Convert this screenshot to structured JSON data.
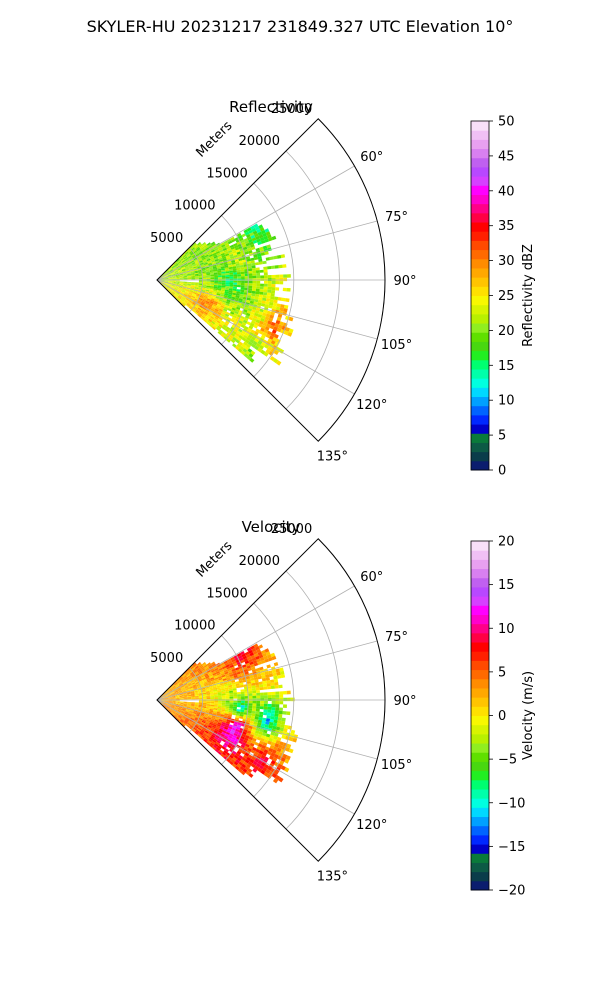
{
  "figure": {
    "title": "SKYLER-HU  20231217  231849.327 UTC Elevation 10°"
  },
  "chart_data": [
    {
      "type": "heatmap",
      "projection": "polar-sector",
      "title": "Reflectivity",
      "radial_label": "Meters",
      "radial_ticks": [
        5000,
        10000,
        15000,
        20000,
        25000
      ],
      "radial_tick_labels": [
        "5000",
        "10000",
        "15000",
        "20000",
        "25000"
      ],
      "r_max": 25000,
      "azimuth_range_deg": [
        45,
        135
      ],
      "azimuth_ticks": [
        60,
        75,
        90,
        105,
        120,
        135
      ],
      "azimuth_tick_labels": [
        "60°",
        "75°",
        "90°",
        "105°",
        "120°",
        "135°"
      ],
      "grid": true,
      "colorbar": {
        "label": "Reflectivity dBZ",
        "range": [
          0,
          50
        ],
        "ticks": [
          0,
          5,
          10,
          15,
          20,
          25,
          30,
          35,
          40,
          45,
          50
        ],
        "tick_labels": [
          "0",
          "5",
          "10",
          "15",
          "20",
          "25",
          "30",
          "35",
          "40",
          "45",
          "50"
        ],
        "colors": [
          "#0b1d6e",
          "#0a3c4a",
          "#0d5a45",
          "#0a7a3a",
          "#0000c8",
          "#0028ff",
          "#0064ff",
          "#00a0ff",
          "#00d8ff",
          "#00ffe0",
          "#00ffaa",
          "#00ff70",
          "#22ee22",
          "#48d810",
          "#60e000",
          "#90ee20",
          "#b8f000",
          "#d8f400",
          "#f8f800",
          "#ffe000",
          "#ffc400",
          "#ffa800",
          "#ff8c00",
          "#ff6a00",
          "#ff4a00",
          "#ff2000",
          "#ff0000",
          "#ff0044",
          "#ff0088",
          "#ff00cc",
          "#ff00ff",
          "#d640ff",
          "#b848ff",
          "#c060f0",
          "#d880f0",
          "#e8a0f0",
          "#f0c0f4",
          "#f8e0f8"
        ]
      },
      "field_samples": [
        {
          "az": 62,
          "range": 12000,
          "value": 16
        },
        {
          "az": 75,
          "range": 9000,
          "value": 22
        },
        {
          "az": 90,
          "range": 8000,
          "value": 15
        },
        {
          "az": 98,
          "range": 9000,
          "value": 18
        },
        {
          "az": 105,
          "range": 12000,
          "value": 23
        },
        {
          "az": 112,
          "range": 13500,
          "value": 33
        },
        {
          "az": 115,
          "range": 6000,
          "value": 30
        },
        {
          "az": 125,
          "range": 13000,
          "value": 20
        }
      ]
    },
    {
      "type": "heatmap",
      "projection": "polar-sector",
      "title": "Velocity",
      "radial_label": "Meters",
      "radial_ticks": [
        5000,
        10000,
        15000,
        20000,
        25000
      ],
      "radial_tick_labels": [
        "5000",
        "10000",
        "15000",
        "20000",
        "25000"
      ],
      "r_max": 25000,
      "azimuth_range_deg": [
        45,
        135
      ],
      "azimuth_ticks": [
        60,
        75,
        90,
        105,
        120,
        135
      ],
      "azimuth_tick_labels": [
        "60°",
        "75°",
        "90°",
        "105°",
        "120°",
        "135°"
      ],
      "grid": true,
      "colorbar": {
        "label": "Velocity (m/s)",
        "range": [
          -20,
          20
        ],
        "ticks": [
          -20,
          -15,
          -10,
          -5,
          0,
          5,
          10,
          15,
          20
        ],
        "tick_labels": [
          "−20",
          "−15",
          "−10",
          "−5",
          "0",
          "5",
          "10",
          "15",
          "20"
        ],
        "colors": [
          "#0b1d6e",
          "#0a3c4a",
          "#0d5a45",
          "#0a7a3a",
          "#0000c8",
          "#0028ff",
          "#0064ff",
          "#00a0ff",
          "#00d8ff",
          "#00ffe0",
          "#00ffaa",
          "#00ff70",
          "#22ee22",
          "#48d810",
          "#60e000",
          "#90ee20",
          "#b8f000",
          "#d8f400",
          "#f8f800",
          "#ffe000",
          "#ffc400",
          "#ffa800",
          "#ff8c00",
          "#ff6a00",
          "#ff4a00",
          "#ff2000",
          "#ff0000",
          "#ff0044",
          "#ff0088",
          "#ff00cc",
          "#ff00ff",
          "#d640ff",
          "#b848ff",
          "#c060f0",
          "#d880f0",
          "#e8a0f0",
          "#f0c0f4",
          "#f8e0f8"
        ]
      },
      "field_samples": [
        {
          "az": 60,
          "range": 10000,
          "value": 10
        },
        {
          "az": 70,
          "range": 9000,
          "value": 5
        },
        {
          "az": 85,
          "range": 8000,
          "value": -3
        },
        {
          "az": 95,
          "range": 9000,
          "value": -11
        },
        {
          "az": 100,
          "range": 12000,
          "value": -12
        },
        {
          "az": 108,
          "range": 9000,
          "value": 14
        },
        {
          "az": 115,
          "range": 9000,
          "value": 12
        },
        {
          "az": 120,
          "range": 13000,
          "value": 9
        }
      ]
    }
  ]
}
